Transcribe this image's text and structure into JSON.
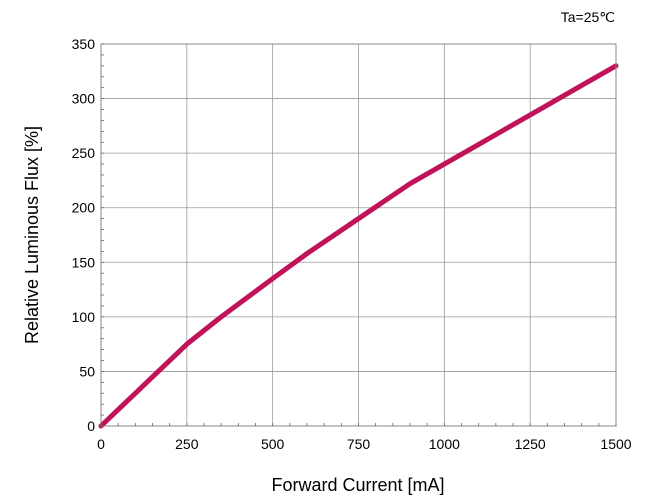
{
  "chart_data": {
    "type": "line",
    "title": "",
    "annotation": "Ta=25℃",
    "xlabel": "Forward Current [mA]",
    "ylabel": "Relative Luminous Flux [%]",
    "xlim": [
      0,
      1500
    ],
    "ylim": [
      0,
      350
    ],
    "xticks": [
      0,
      250,
      500,
      750,
      1000,
      1250,
      1500
    ],
    "yticks": [
      0,
      50,
      100,
      150,
      200,
      250,
      300,
      350
    ],
    "grid": true,
    "legend": "none",
    "series": [
      {
        "color": "#c0135a",
        "x": [
          0,
          100,
          200,
          250,
          350,
          500,
          600,
          750,
          900,
          1000,
          1100,
          1250,
          1400,
          1500
        ],
        "y": [
          0,
          30,
          60,
          75,
          100,
          135,
          158,
          190,
          222,
          240,
          258,
          285,
          312,
          330
        ]
      }
    ]
  }
}
